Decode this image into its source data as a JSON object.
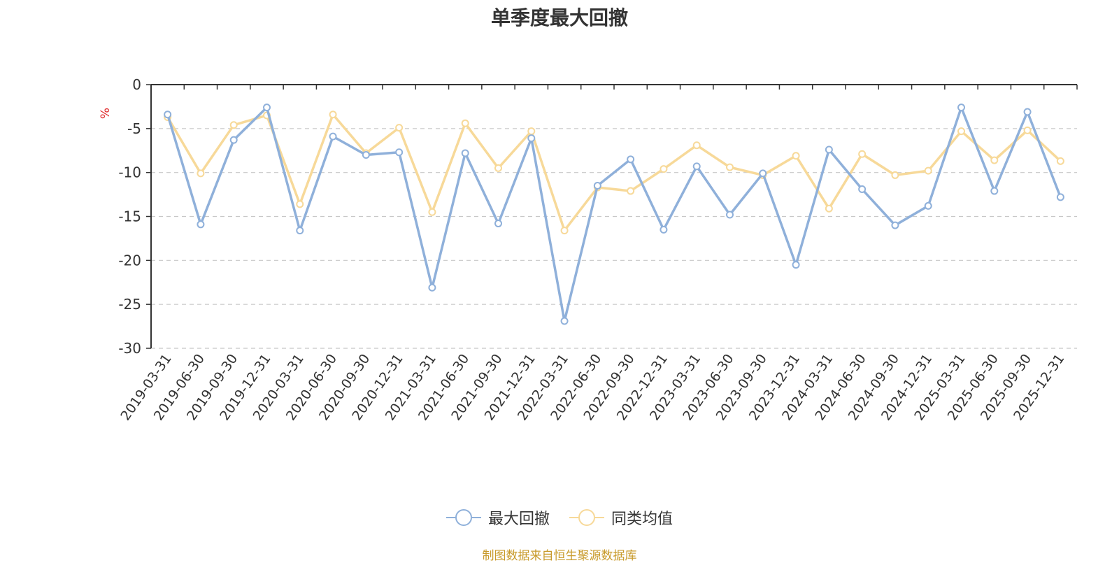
{
  "chart_data": {
    "type": "line",
    "title": "单季度最大回撤",
    "ylabel": "%",
    "ylim": [
      -30,
      0
    ],
    "yticks": [
      0,
      -5,
      -10,
      -15,
      -20,
      -25,
      -30
    ],
    "grid": true,
    "legend_position": "bottom",
    "categories": [
      "2019-03-31",
      "2019-06-30",
      "2019-09-30",
      "2019-12-31",
      "2020-03-31",
      "2020-06-30",
      "2020-09-30",
      "2020-12-31",
      "2021-03-31",
      "2021-06-30",
      "2021-09-30",
      "2021-12-31",
      "2022-03-31",
      "2022-06-30",
      "2022-09-30",
      "2022-12-31",
      "2023-03-31",
      "2023-06-30",
      "2023-09-30",
      "2023-12-31",
      "2024-03-31",
      "2024-06-30",
      "2024-09-30",
      "2024-12-31",
      "2025-03-31",
      "2025-06-30",
      "2025-09-30",
      "2025-12-31"
    ],
    "series": [
      {
        "name": "最大回撤",
        "color": "#8fb0da",
        "values": [
          -3.4,
          -15.9,
          -6.3,
          -2.6,
          -16.6,
          -5.9,
          -8.0,
          -7.7,
          -23.1,
          -7.8,
          -15.8,
          -6.1,
          -26.9,
          -11.5,
          -8.5,
          -16.5,
          -9.3,
          -14.8,
          -10.1,
          -20.5,
          -7.4,
          -11.9,
          -16.0,
          -13.8,
          -2.6,
          -12.1,
          -3.1,
          -12.8
        ]
      },
      {
        "name": "同类均值",
        "color": "#f7d999",
        "values": [
          -3.7,
          -10.1,
          -4.6,
          -3.5,
          -13.6,
          -3.4,
          -7.8,
          -4.9,
          -14.5,
          -4.4,
          -9.5,
          -5.3,
          -16.6,
          -11.7,
          -12.1,
          -9.6,
          -6.9,
          -9.4,
          -10.3,
          -8.1,
          -14.1,
          -7.9,
          -10.3,
          -9.8,
          -5.3,
          -8.6,
          -5.2,
          -8.7
        ]
      }
    ]
  },
  "source_note": "制图数据来自恒生聚源数据库"
}
